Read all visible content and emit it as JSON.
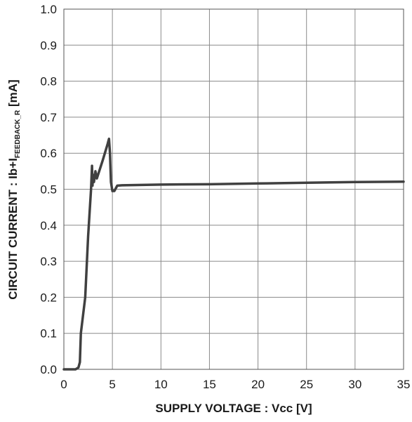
{
  "chart_data": {
    "type": "line",
    "title": "",
    "xlabel": "SUPPLY VOLTAGE : Vcc [V]",
    "ylabel": {
      "prefix": "CIRCUIT CURRENT : Ib+I",
      "subscript": "FEEDBACK_R",
      "suffix": " [mA]"
    },
    "xlim": [
      0,
      35
    ],
    "ylim": [
      0.0,
      1.0
    ],
    "xticks": [
      "0",
      "5",
      "10",
      "15",
      "20",
      "25",
      "30",
      "35"
    ],
    "yticks": [
      "0.0",
      "0.1",
      "0.2",
      "0.3",
      "0.4",
      "0.5",
      "0.6",
      "0.7",
      "0.8",
      "0.9",
      "1.0"
    ],
    "grid": true,
    "line_color": "#404040",
    "series": [
      {
        "x": [
          0,
          1.2,
          1.5,
          1.65,
          1.75,
          2.2,
          2.5,
          2.8,
          2.9,
          2.95,
          3.0,
          3.1,
          3.25,
          3.4,
          4.0,
          4.5,
          4.65,
          4.75,
          4.85,
          5.0,
          5.2,
          5.5,
          6.0,
          8,
          10,
          15,
          20,
          25,
          30,
          35
        ],
        "y": [
          0.0,
          0.0,
          0.005,
          0.02,
          0.1,
          0.2,
          0.37,
          0.5,
          0.565,
          0.51,
          0.54,
          0.52,
          0.55,
          0.53,
          0.58,
          0.625,
          0.64,
          0.6,
          0.52,
          0.495,
          0.495,
          0.51,
          0.511,
          0.512,
          0.513,
          0.514,
          0.516,
          0.518,
          0.52,
          0.521
        ]
      }
    ]
  }
}
